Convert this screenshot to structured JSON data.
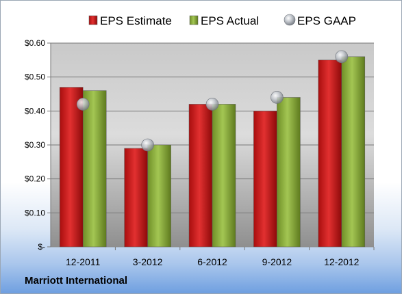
{
  "chart_data": {
    "type": "bar",
    "categories": [
      "12-2011",
      "3-2012",
      "6-2012",
      "9-2012",
      "12-2012"
    ],
    "series": [
      {
        "name": "EPS Estimate",
        "values": [
          0.47,
          0.29,
          0.42,
          0.4,
          0.55
        ],
        "color": "#d01c1c",
        "kind": "bar"
      },
      {
        "name": "EPS Actual",
        "values": [
          0.46,
          0.3,
          0.42,
          0.44,
          0.56
        ],
        "color": "#8fb43a",
        "kind": "bar"
      },
      {
        "name": "EPS GAAP",
        "values": [
          0.42,
          0.3,
          0.42,
          0.44,
          0.56
        ],
        "color": "#b9bdc4",
        "kind": "marker"
      }
    ],
    "y_ticks": [
      "$-",
      "$0.10",
      "$0.20",
      "$0.30",
      "$0.40",
      "$0.50",
      "$0.60"
    ],
    "ylim": [
      0,
      0.6
    ],
    "grid": true,
    "legend_position": "top"
  },
  "footer": {
    "company": "Marriott International"
  }
}
